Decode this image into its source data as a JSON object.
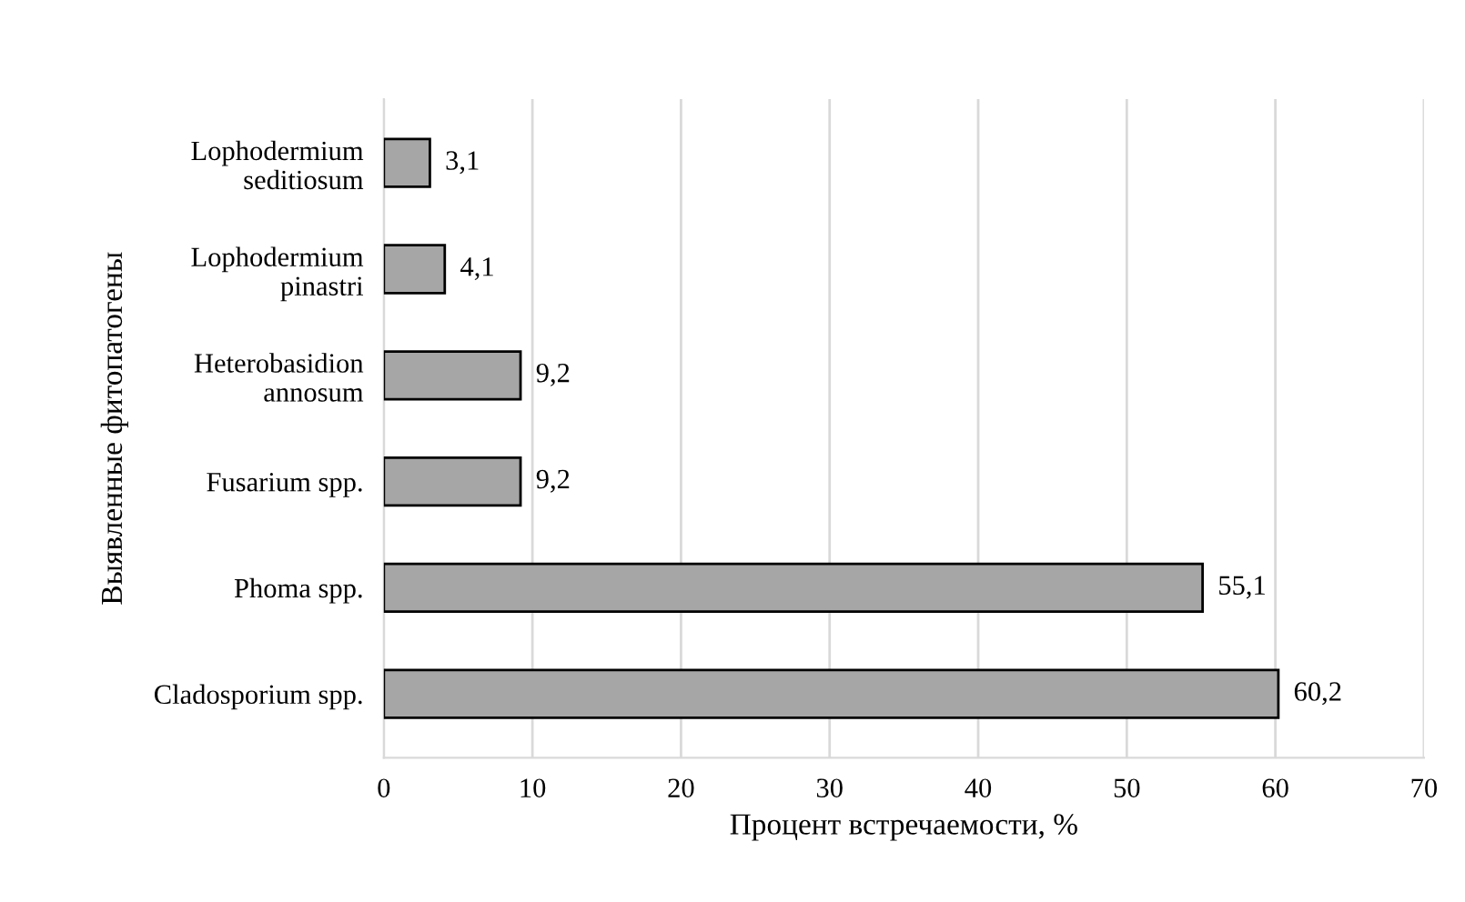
{
  "chart_data": {
    "type": "bar",
    "orientation": "horizontal",
    "xlabel": "Процент встречаемости, %",
    "ylabel": "Выявленные фитопатогены",
    "categories": [
      "Lophodermium\nseditiosum",
      "Lophodermium\npinastri",
      "Heterobasidion\nannosum",
      "Fusarium spp.",
      "Phoma spp.",
      "Cladosporium spp."
    ],
    "values": [
      3.1,
      4.1,
      9.2,
      9.2,
      55.1,
      60.2
    ],
    "value_labels": [
      "3,1",
      "4,1",
      "9,2",
      "9,2",
      "55,1",
      "60,2"
    ],
    "color": "#a6a6a6",
    "xlim": [
      0,
      70
    ],
    "xticks": [
      0,
      10,
      20,
      30,
      40,
      50,
      60,
      70
    ],
    "grid": "x",
    "legend": false
  }
}
